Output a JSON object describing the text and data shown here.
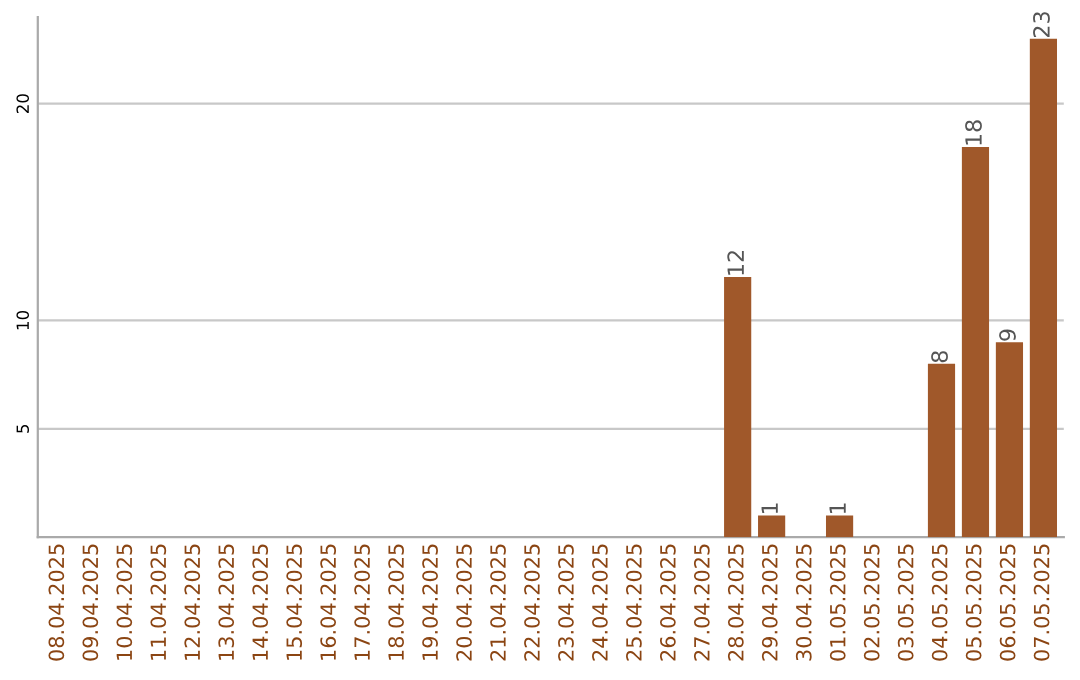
{
  "chart_data": {
    "type": "bar",
    "categories": [
      "08.04.2025",
      "09.04.2025",
      "10.04.2025",
      "11.04.2025",
      "12.04.2025",
      "13.04.2025",
      "14.04.2025",
      "15.04.2025",
      "16.04.2025",
      "17.04.2025",
      "18.04.2025",
      "19.04.2025",
      "20.04.2025",
      "21.04.2025",
      "22.04.2025",
      "23.04.2025",
      "24.04.2025",
      "25.04.2025",
      "26.04.2025",
      "27.04.2025",
      "28.04.2025",
      "29.04.2025",
      "30.04.2025",
      "01.05.2025",
      "02.05.2025",
      "03.05.2025",
      "04.05.2025",
      "05.05.2025",
      "06.05.2025",
      "07.05.2025"
    ],
    "values": [
      0,
      0,
      0,
      0,
      0,
      0,
      0,
      0,
      0,
      0,
      0,
      0,
      0,
      0,
      0,
      0,
      0,
      0,
      0,
      0,
      12,
      1,
      0,
      1,
      0,
      0,
      8,
      18,
      9,
      23
    ],
    "value_labels": [
      null,
      null,
      null,
      null,
      null,
      null,
      null,
      null,
      null,
      null,
      null,
      null,
      null,
      null,
      null,
      null,
      null,
      null,
      null,
      null,
      "12",
      "1",
      null,
      "1",
      null,
      null,
      "8",
      "18",
      "9",
      "23"
    ],
    "color": "#a0582a",
    "ylim": [
      0,
      24
    ],
    "yticks": [
      5,
      10,
      20
    ],
    "grid": "y"
  }
}
